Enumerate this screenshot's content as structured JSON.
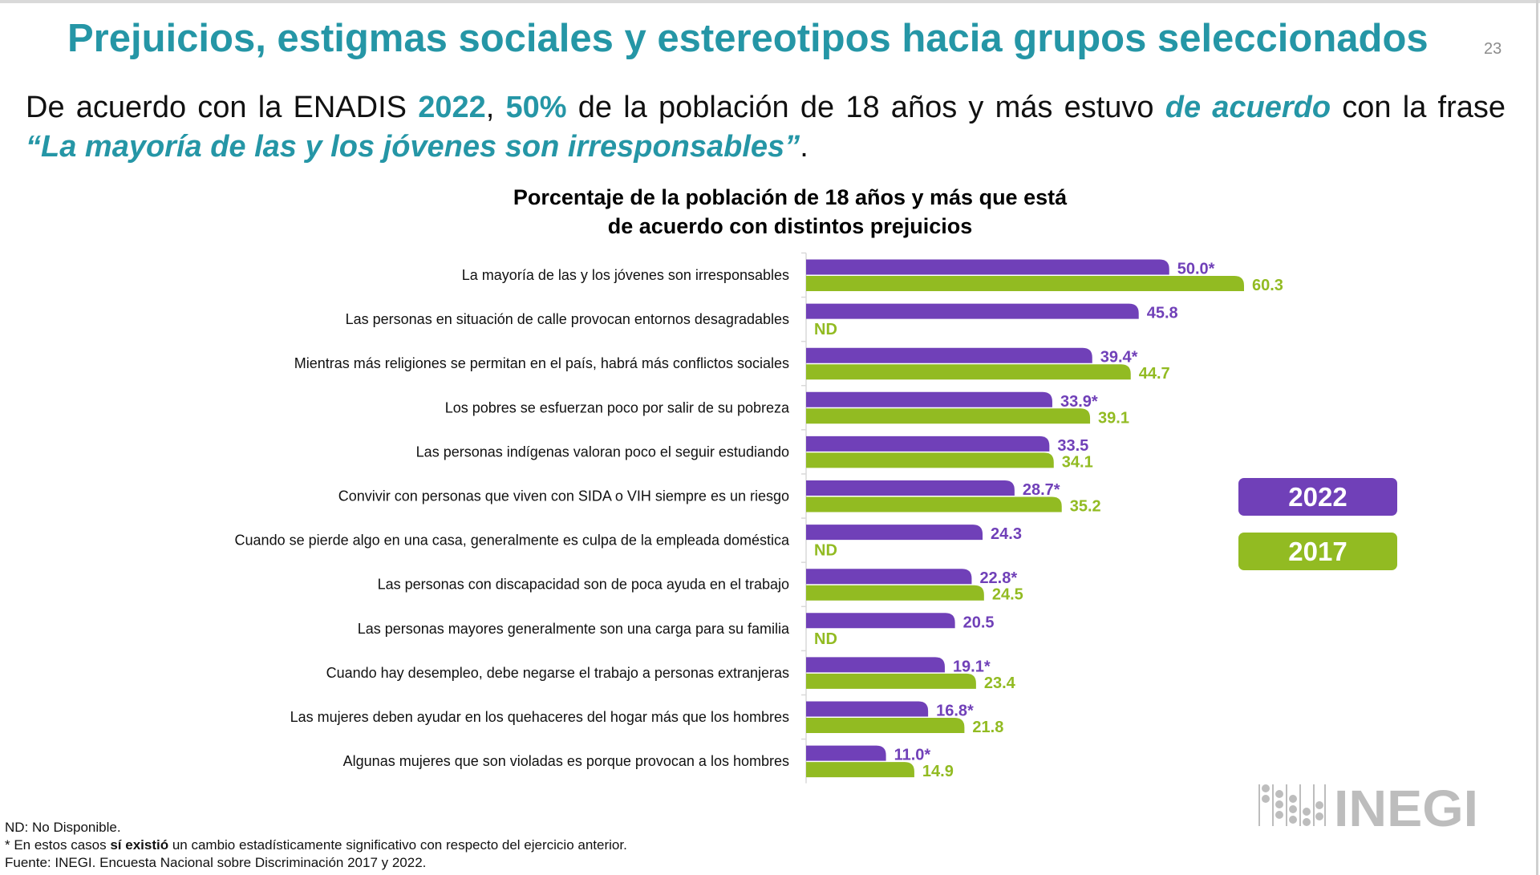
{
  "header": {
    "title": "Prejuicios, estigmas sociales y estereotipos hacia grupos seleccionados",
    "page_number": "23"
  },
  "subtitle": {
    "part1": "De acuerdo con la ENADIS ",
    "year": "2022",
    "part2": ", ",
    "percent": "50%",
    "part3": " de la población de 18 años y más estuvo ",
    "emphasis": "de acuerdo",
    "part4": " con la frase ",
    "quote": "“La mayoría de las y los jóvenes son irresponsables”",
    "part5": "."
  },
  "colors": {
    "accent": "#2596a6",
    "series_2022": "#7040b8",
    "series_2017": "#92bb22",
    "logo": "#bdbdbd"
  },
  "chart_data": {
    "type": "bar",
    "orientation": "horizontal",
    "title_line1": "Porcentaje de la población de 18 años y más que está",
    "title_line2": "de acuerdo con distintos prejuicios",
    "categories": [
      "La mayoría de las y los jóvenes son irresponsables",
      "Las personas en situación de calle provocan entornos desagradables",
      "Mientras más religiones se permitan en el país, habrá más conflictos sociales",
      "Los pobres se esfuerzan poco por salir de su pobreza",
      "Las personas indígenas valoran poco el seguir estudiando",
      "Convivir con personas que viven con SIDA o VIH siempre es un riesgo",
      "Cuando se pierde algo en una casa, generalmente es culpa de la empleada doméstica",
      "Las personas con discapacidad son de poca ayuda en el trabajo",
      "Las personas mayores generalmente son una carga para su familia",
      "Cuando hay desempleo, debe negarse el trabajo a personas extranjeras",
      "Las mujeres deben ayudar en los quehaceres del hogar más que los hombres",
      "Algunas mujeres que son violadas es porque provocan a los hombres"
    ],
    "series": [
      {
        "name": "2022",
        "values": [
          50.0,
          45.8,
          39.4,
          33.9,
          33.5,
          28.7,
          24.3,
          22.8,
          20.5,
          19.1,
          16.8,
          11.0
        ],
        "labels": [
          "50.0*",
          "45.8",
          "39.4*",
          "33.9*",
          "33.5",
          "28.7*",
          "24.3",
          "22.8*",
          "20.5",
          "19.1*",
          "16.8*",
          "11.0*"
        ]
      },
      {
        "name": "2017",
        "values": [
          60.3,
          null,
          44.7,
          39.1,
          34.1,
          35.2,
          null,
          24.5,
          null,
          23.4,
          21.8,
          14.9
        ],
        "labels": [
          "60.3",
          "ND",
          "44.7",
          "39.1",
          "34.1",
          "35.2",
          "ND",
          "24.5",
          "ND",
          "23.4",
          "21.8",
          "14.9"
        ]
      }
    ],
    "xlim": [
      0,
      60.3
    ],
    "grid": false,
    "legend": [
      "2022",
      "2017"
    ],
    "legend_placement": "right"
  },
  "logo": {
    "text": "INEGI"
  },
  "footnotes": {
    "nd": "ND: No Disponible.",
    "sig_part1": "* En estos casos ",
    "sig_bold": "sí existió",
    "sig_part2": " un cambio estadísticamente significativo con respecto del ejercicio anterior.",
    "source": "Fuente: INEGI. Encuesta Nacional sobre Discriminación 2017 y 2022."
  }
}
